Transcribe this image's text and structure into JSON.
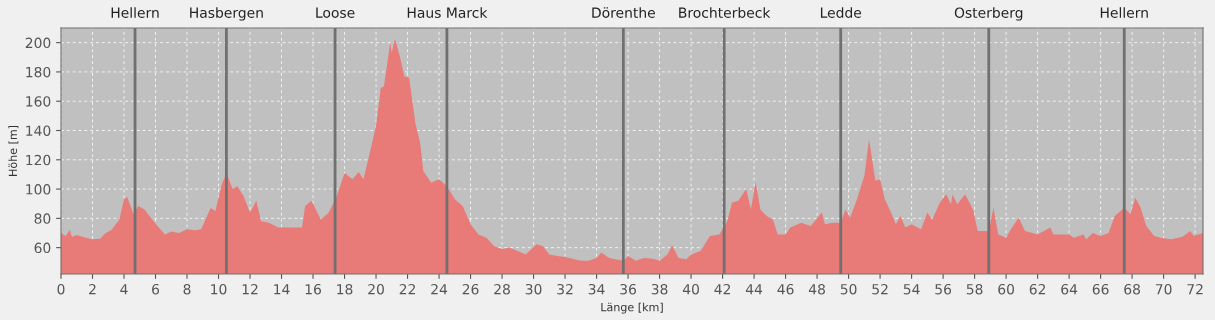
{
  "chart_data": {
    "type": "area",
    "xlabel": "Länge [km]",
    "ylabel": "Höhe [m]",
    "series": [
      {
        "color": "#e87a78",
        "x": [
          0,
          0.3,
          0.55,
          0.7,
          1,
          1.5,
          2,
          2.5,
          2.8,
          3.2,
          3.7,
          4.0,
          4.2,
          4.6,
          4.9,
          5.3,
          5.8,
          6.3,
          6.6,
          7,
          7.5,
          8,
          8.5,
          8.9,
          9.5,
          9.8,
          10.2,
          10.5,
          10.9,
          11.2,
          11.6,
          12,
          12.4,
          12.7,
          13.2,
          13.8,
          14.5,
          15.3,
          15.5,
          15.9,
          16.5,
          17,
          17.5,
          18,
          18.5,
          18.9,
          19.2,
          19.5,
          20,
          20.3,
          20.5,
          20.9,
          21,
          21.2,
          21.5,
          21.8,
          22.1,
          22.5,
          22.8,
          23.0,
          23.5,
          24.0,
          24.5,
          25,
          25.5,
          26,
          26.5,
          27,
          27.5,
          28,
          28.5,
          29.5,
          30.2,
          30.6,
          31,
          31.5,
          32,
          33,
          33.5,
          34,
          34.3,
          34.8,
          35.2,
          35.7,
          36,
          36.5,
          37,
          37.6,
          38,
          38.5,
          38.8,
          39.2,
          39.7,
          40,
          40.6,
          41.2,
          41.8,
          42.3,
          42.6,
          43,
          43.5,
          43.8,
          44.1,
          44.4,
          44.8,
          45.2,
          45.5,
          46,
          46.3,
          47,
          47.6,
          48.3,
          48.5,
          49,
          49.5,
          49.8,
          50.1,
          50.5,
          51,
          51.3,
          51.7,
          52,
          52.3,
          52.7,
          53,
          53.3,
          53.6,
          54,
          54.6,
          55,
          55.3,
          55.8,
          56.2,
          56.5,
          56.6,
          56.9,
          57.4,
          57.9,
          58.2,
          58.9,
          59.2,
          59.5,
          60,
          60.3,
          60.8,
          61.2,
          62,
          62.8,
          63,
          64,
          64.3,
          64.9,
          65.1,
          65.5,
          66,
          66.5,
          66.9,
          67.5,
          67.9,
          68.2,
          68.5,
          68.9,
          69.4,
          69.8,
          70.5,
          71.2,
          71.7,
          71.9,
          72.5
        ],
        "values": [
          70,
          68,
          72,
          67.5,
          68.6,
          67,
          65.7,
          66,
          69.6,
          72,
          79,
          93,
          94.6,
          83,
          88.5,
          86,
          79,
          72.5,
          69,
          71,
          70,
          72.5,
          71.8,
          72.5,
          87,
          85,
          103,
          111,
          100,
          102,
          95,
          84,
          92,
          78,
          77,
          73.7,
          73.7,
          73.7,
          88.5,
          92,
          79,
          84,
          95,
          111,
          106.7,
          111.7,
          106.7,
          120,
          143,
          169,
          170,
          200,
          193,
          202.7,
          191,
          177,
          176,
          145,
          131.7,
          112.4,
          104.4,
          106.7,
          102,
          93,
          88.5,
          76,
          69,
          66.8,
          61,
          59,
          60,
          55.4,
          62.3,
          61,
          55.4,
          54.3,
          53.6,
          51,
          51,
          53,
          56.6,
          53,
          52,
          51,
          54.3,
          51,
          53,
          52.5,
          51,
          55.4,
          61.6,
          53,
          52,
          55.4,
          57.7,
          68,
          69,
          78,
          90.8,
          92,
          100,
          86,
          105,
          86,
          81.6,
          79,
          69,
          69,
          73.7,
          77,
          74.8,
          84,
          76,
          77,
          77,
          86,
          80.5,
          92,
          109,
          134,
          105.6,
          106.7,
          93,
          84,
          76,
          81.6,
          73.7,
          76,
          72.5,
          84,
          79,
          90.8,
          96.4,
          89.7,
          96.4,
          89.7,
          96.4,
          86,
          71.4,
          71.4,
          87.3,
          69,
          66.8,
          72.5,
          80.5,
          71.4,
          69,
          73.7,
          69,
          69,
          66.8,
          69,
          65.7,
          70,
          68,
          70,
          81.6,
          87.3,
          82.8,
          94,
          88.5,
          74.8,
          68,
          66.8,
          65.7,
          67.5,
          71.4,
          68,
          70
        ]
      }
    ],
    "xlim": [
      0,
      72.5
    ],
    "ylim": [
      42,
      210
    ],
    "xticks": [
      0,
      2,
      4,
      6,
      8,
      10,
      12,
      14,
      16,
      18,
      20,
      22,
      24,
      26,
      28,
      30,
      32,
      34,
      36,
      38,
      40,
      42,
      44,
      46,
      48,
      50,
      52,
      54,
      56,
      58,
      60,
      62,
      64,
      66,
      68,
      70,
      72
    ],
    "yticks": [
      60,
      80,
      100,
      120,
      140,
      160,
      180,
      200
    ],
    "grid": true,
    "ref_lines": [
      {
        "axis": "x",
        "value": 4.7,
        "label": "Hellern",
        "color": "#707070"
      },
      {
        "axis": "x",
        "value": 10.5,
        "label": "Hasbergen",
        "color": "#707070"
      },
      {
        "axis": "x",
        "value": 17.4,
        "label": "Loose",
        "color": "#707070"
      },
      {
        "axis": "x",
        "value": 24.5,
        "label": "Haus Marck",
        "color": "#707070"
      },
      {
        "axis": "x",
        "value": 35.7,
        "label": "Dörenthe",
        "color": "#707070"
      },
      {
        "axis": "x",
        "value": 42.1,
        "label": "Brochterbeck",
        "color": "#707070"
      },
      {
        "axis": "x",
        "value": 49.5,
        "label": "Ledde",
        "color": "#707070"
      },
      {
        "axis": "x",
        "value": 58.9,
        "label": "Osterberg",
        "color": "#707070"
      },
      {
        "axis": "x",
        "value": 67.5,
        "label": "Hellern",
        "color": "#707070"
      }
    ]
  }
}
